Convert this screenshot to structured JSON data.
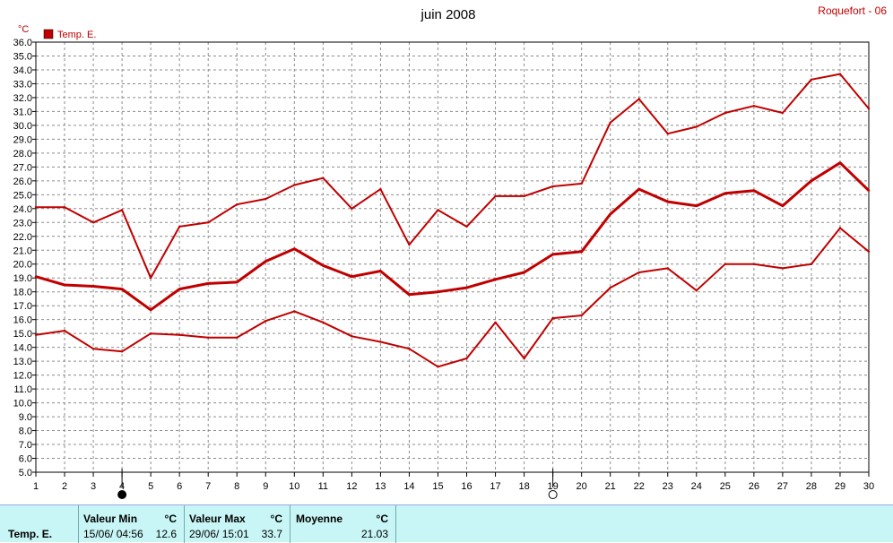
{
  "station": "Roquefort - 06",
  "legend": {
    "color": "#c00000"
  },
  "stats": {
    "row_label": "Temp. E.",
    "min": {
      "header": "Valeur Min",
      "unit": "°C",
      "when": "15/06/  04:56",
      "value": "12.6"
    },
    "max": {
      "header": "Valeur Max",
      "unit": "°C",
      "when": "29/06/  15:01",
      "value": "33.7"
    },
    "mean": {
      "header": "Moyenne",
      "unit": "°C",
      "value": "21.03"
    }
  },
  "chart_data": {
    "type": "line",
    "title": "juin 2008",
    "ylabel": "°C",
    "xlabel": "",
    "ylim": [
      5.0,
      36.0
    ],
    "ytick_step": 1.0,
    "grid": true,
    "legend_position": "top-left",
    "x": [
      1,
      2,
      3,
      4,
      5,
      6,
      7,
      8,
      9,
      10,
      11,
      12,
      13,
      14,
      15,
      16,
      17,
      18,
      19,
      20,
      21,
      22,
      23,
      24,
      25,
      26,
      27,
      28,
      29,
      30
    ],
    "moon_phases": [
      {
        "day": 4,
        "phase": "new-moon"
      },
      {
        "day": 19,
        "phase": "full-moon"
      }
    ],
    "series": [
      {
        "name": "Temp. E.",
        "role": "max",
        "color": "#c00000",
        "values": [
          24.1,
          24.1,
          23.0,
          23.9,
          19.0,
          22.7,
          23.0,
          24.3,
          24.7,
          25.7,
          26.2,
          24.0,
          25.4,
          21.4,
          23.9,
          22.7,
          24.9,
          24.9,
          25.6,
          25.8,
          30.2,
          31.9,
          29.4,
          29.9,
          30.9,
          31.4,
          30.9,
          33.3,
          33.7,
          31.2
        ]
      },
      {
        "name": "",
        "role": "mean",
        "color": "#c00000",
        "values": [
          19.1,
          18.5,
          18.4,
          18.2,
          16.7,
          18.2,
          18.6,
          18.7,
          20.2,
          21.1,
          19.9,
          19.1,
          19.5,
          17.8,
          18.0,
          18.3,
          18.9,
          19.4,
          20.7,
          20.9,
          23.6,
          25.4,
          24.5,
          24.2,
          25.1,
          25.3,
          24.2,
          26.0,
          27.3,
          25.3
        ]
      },
      {
        "name": "",
        "role": "min",
        "color": "#c00000",
        "values": [
          14.9,
          15.2,
          13.9,
          13.7,
          15.0,
          14.9,
          14.7,
          14.7,
          15.9,
          16.6,
          15.8,
          14.8,
          14.4,
          13.9,
          12.6,
          13.2,
          15.8,
          13.2,
          16.1,
          16.3,
          18.3,
          19.4,
          19.7,
          18.1,
          20.0,
          20.0,
          19.7,
          20.0,
          22.6,
          20.9
        ]
      }
    ]
  }
}
